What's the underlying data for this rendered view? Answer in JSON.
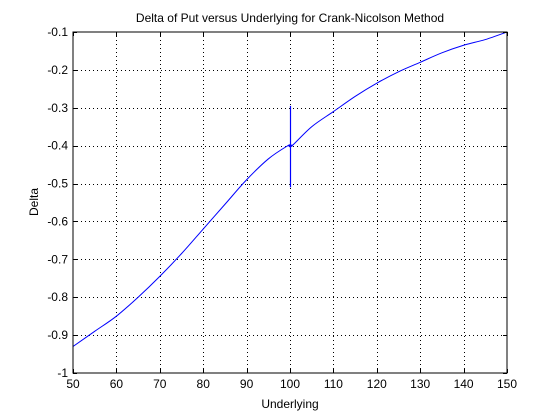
{
  "chart_data": {
    "type": "line",
    "title": "Delta of Put versus Underlying for Crank-Nicolson Method",
    "xlabel": "Underlying",
    "ylabel": "Delta",
    "xlim": [
      50,
      150
    ],
    "ylim": [
      -1,
      -0.1
    ],
    "xticks": [
      50,
      60,
      70,
      80,
      90,
      100,
      110,
      120,
      130,
      140,
      150
    ],
    "xtick_labels": [
      "50",
      "60",
      "70",
      "80",
      "90",
      "100",
      "110",
      "120",
      "130",
      "140",
      "150"
    ],
    "yticks": [
      -1,
      -0.9,
      -0.8,
      -0.7,
      -0.6,
      -0.5,
      -0.4,
      -0.3,
      -0.2,
      -0.1
    ],
    "ytick_labels": [
      "-1",
      "-0.9",
      "-0.8",
      "-0.7",
      "-0.6",
      "-0.5",
      "-0.4",
      "-0.3",
      "-0.2",
      "-0.1"
    ],
    "grid": true,
    "line_color": "#0000ff",
    "series": [
      {
        "x": [
          50,
          55,
          60,
          65,
          70,
          75,
          80,
          85,
          90,
          95,
          99.5,
          100,
          100.5,
          105,
          110,
          115,
          120,
          125,
          130,
          135,
          140,
          145,
          150
        ],
        "values": [
          -0.93,
          -0.89,
          -0.85,
          -0.8,
          -0.745,
          -0.685,
          -0.62,
          -0.555,
          -0.49,
          -0.435,
          -0.4,
          -0.4,
          -0.4,
          -0.35,
          -0.31,
          -0.27,
          -0.235,
          -0.205,
          -0.18,
          -0.155,
          -0.135,
          -0.12,
          -0.1
        ]
      }
    ],
    "spike": {
      "x": 100,
      "y_range": [
        -0.51,
        -0.295
      ],
      "color": "#0000ff"
    }
  }
}
